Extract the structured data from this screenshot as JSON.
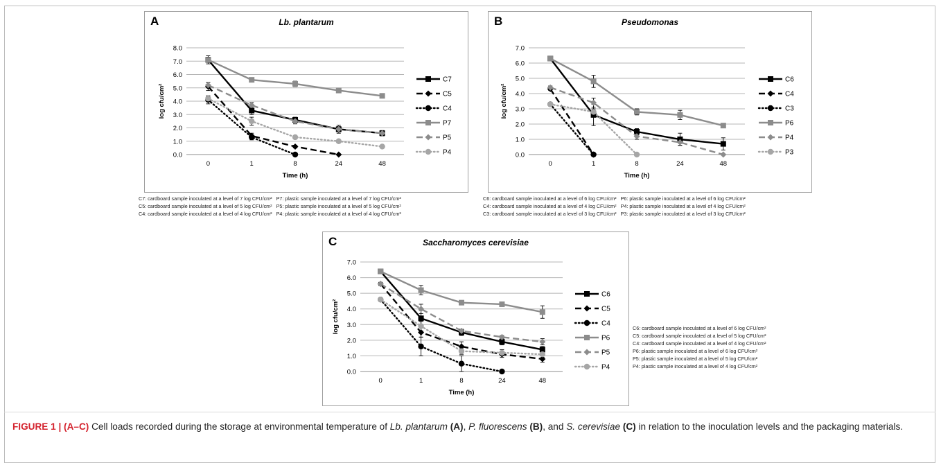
{
  "figure": {
    "caption_label": "FIGURE 1 | (A–C)",
    "caption_parts": [
      {
        "t": " Cell loads recorded during the storage at environmental temperature of ",
        "s": ""
      },
      {
        "t": "Lb. plantarum",
        "s": "i"
      },
      {
        "t": " ",
        "s": ""
      },
      {
        "t": "(A)",
        "s": "b"
      },
      {
        "t": ", ",
        "s": ""
      },
      {
        "t": "P. fluorescens",
        "s": "i"
      },
      {
        "t": " ",
        "s": ""
      },
      {
        "t": "(B)",
        "s": "b"
      },
      {
        "t": ", and ",
        "s": ""
      },
      {
        "t": "S. cerevisiae",
        "s": "i"
      },
      {
        "t": " ",
        "s": ""
      },
      {
        "t": "(C)",
        "s": "b"
      },
      {
        "t": " in relation to the inoculation levels and the packaging materials.",
        "s": ""
      }
    ]
  },
  "styles": {
    "C": {
      "color": "#000000",
      "dash": ""
    },
    "C_mid": {
      "color": "#000000",
      "dash": "9,5"
    },
    "C_low": {
      "color": "#000000",
      "dash": "1.5,3.5"
    },
    "P": {
      "color": "#8c8c8c",
      "dash": ""
    },
    "P_mid": {
      "color": "#8c8c8c",
      "dash": "9,5"
    },
    "P_low": {
      "color": "#a6a6a6",
      "dash": "1.5,3.5"
    }
  },
  "chart_data": [
    {
      "id": "A",
      "type": "line",
      "panel_letter": "A",
      "title": "Lb. plantarum",
      "xlabel": "Time (h)",
      "ylabel": "log cfu/cm²",
      "categories": [
        "0",
        "1",
        "8",
        "24",
        "48"
      ],
      "ylim": [
        0,
        8
      ],
      "yticks": [
        "0.0",
        "1.0",
        "2.0",
        "3.0",
        "4.0",
        "5.0",
        "6.0",
        "7.0",
        "8.0"
      ],
      "grid": true,
      "legend_position": "right",
      "series": [
        {
          "name": "C7",
          "style": "C",
          "marker": "square",
          "values": [
            7.1,
            3.3,
            2.6,
            1.9,
            1.6
          ],
          "err": [
            0.3,
            0.3,
            0.2,
            0.3,
            0.2
          ]
        },
        {
          "name": "C5",
          "style": "C_mid",
          "marker": "diamond",
          "values": [
            5.1,
            1.4,
            0.6,
            0.0,
            null
          ],
          "err": [
            0.3,
            0.2,
            0.1,
            0,
            0
          ]
        },
        {
          "name": "C4",
          "style": "C_low",
          "marker": "circle",
          "values": [
            4.1,
            1.3,
            0.0,
            null,
            null
          ],
          "err": [
            0.3,
            0.2,
            0,
            0,
            0
          ]
        },
        {
          "name": "P7",
          "style": "P",
          "marker": "square",
          "values": [
            7.1,
            5.6,
            5.3,
            4.8,
            4.4
          ],
          "err": [
            0.2,
            0.1,
            0.2,
            0.1,
            0.1
          ]
        },
        {
          "name": "P5",
          "style": "P_mid",
          "marker": "diamond",
          "values": [
            5.2,
            3.7,
            2.5,
            1.9,
            1.6
          ],
          "err": [
            0.2,
            0.2,
            0.2,
            0.2,
            0.2
          ]
        },
        {
          "name": "P4",
          "style": "P_low",
          "marker": "circle",
          "values": [
            4.2,
            2.5,
            1.3,
            1.0,
            0.6
          ],
          "err": [
            0.2,
            0.3,
            0.1,
            0.1,
            0.1
          ]
        }
      ],
      "caption_lines": [
        [
          "C7: cardboard sample inoculated at a level of 7 log CFU/cm²",
          "P7: plastic sample inoculated at a level of 7 log CFU/cm²"
        ],
        [
          "C5: cardboard sample inoculated at a level of 5 log CFU/cm²",
          "P5: plastic sample inoculated at a level of 5 log CFU/cm²"
        ],
        [
          "C4: cardboard sample inoculated at a level of 4 log CFU/cm²",
          "P4: plastic sample inoculated at a level of 4 log CFU/cm²"
        ]
      ]
    },
    {
      "id": "B",
      "type": "line",
      "panel_letter": "B",
      "title": "Pseudomonas",
      "xlabel": "Time (h)",
      "ylabel": "log cfu/cm²",
      "categories": [
        "0",
        "1",
        "8",
        "24",
        "48"
      ],
      "ylim": [
        0,
        7
      ],
      "yticks": [
        "0.0",
        "1.0",
        "2.0",
        "3.0",
        "4.0",
        "5.0",
        "6.0",
        "7.0"
      ],
      "grid": true,
      "legend_position": "right",
      "series": [
        {
          "name": "C6",
          "style": "C",
          "marker": "square",
          "values": [
            6.3,
            2.6,
            1.5,
            1.0,
            0.7
          ],
          "err": [
            0.1,
            0.7,
            0.2,
            0.4,
            0.4
          ]
        },
        {
          "name": "C4",
          "style": "C_mid",
          "marker": "diamond",
          "values": [
            4.3,
            0.0,
            null,
            null,
            null
          ],
          "err": [
            0.1,
            0,
            0,
            0,
            0
          ]
        },
        {
          "name": "C3",
          "style": "C_low",
          "marker": "circle",
          "values": [
            3.3,
            0.0,
            null,
            null,
            null
          ],
          "err": [
            0.1,
            0,
            0,
            0,
            0
          ]
        },
        {
          "name": "P6",
          "style": "P",
          "marker": "square",
          "values": [
            6.3,
            4.8,
            2.8,
            2.6,
            1.9
          ],
          "err": [
            0.1,
            0.4,
            0.2,
            0.3,
            0.1
          ]
        },
        {
          "name": "P4",
          "style": "P_mid",
          "marker": "diamond",
          "values": [
            4.4,
            3.4,
            1.2,
            0.8,
            0.0
          ],
          "err": [
            0.1,
            0.3,
            0.2,
            0.2,
            0
          ]
        },
        {
          "name": "P3",
          "style": "P_low",
          "marker": "circle",
          "values": [
            3.3,
            2.8,
            0.0,
            null,
            null
          ],
          "err": [
            0.1,
            0.2,
            0,
            0,
            0
          ]
        }
      ],
      "caption_lines": [
        [
          "C6: cardboard sample inoculated at a level of 6 log CFU/cm²",
          "P6: plastic sample inoculated at a level of 6 log CFU/cm²"
        ],
        [
          "C4: cardboard sample inoculated at a level of 4 log CFU/cm²",
          "P4: plastic sample inoculated at a level of 4 log CFU/cm²"
        ],
        [
          "C3: cardboard sample inoculated at a level of 3 log CFU/cm²",
          "P3: plastic sample inoculated at a level of 3 log CFU/cm²"
        ]
      ]
    },
    {
      "id": "C",
      "type": "line",
      "panel_letter": "C",
      "title": "Saccharomyces cerevisiae",
      "xlabel": "Time (h)",
      "ylabel": "log cfu/cm²",
      "categories": [
        "0",
        "1",
        "8",
        "24",
        "48"
      ],
      "ylim": [
        0,
        7
      ],
      "yticks": [
        "0.0",
        "1.0",
        "2.0",
        "3.0",
        "4.0",
        "5.0",
        "6.0",
        "7.0"
      ],
      "grid": true,
      "legend_position": "right",
      "series": [
        {
          "name": "C6",
          "style": "C",
          "marker": "square",
          "values": [
            6.4,
            3.4,
            2.5,
            1.9,
            1.4
          ],
          "err": [
            0.1,
            0.5,
            0.2,
            0.2,
            0.2
          ]
        },
        {
          "name": "C5",
          "style": "C_mid",
          "marker": "diamond",
          "values": [
            5.6,
            2.5,
            1.6,
            1.1,
            0.8
          ],
          "err": [
            0.1,
            0.3,
            0.3,
            0.2,
            0.2
          ]
        },
        {
          "name": "C4",
          "style": "C_low",
          "marker": "circle",
          "values": [
            4.6,
            1.6,
            0.5,
            0.0,
            null
          ],
          "err": [
            0.1,
            0.6,
            0.5,
            0,
            0
          ]
        },
        {
          "name": "P6",
          "style": "P",
          "marker": "square",
          "values": [
            6.4,
            5.2,
            4.4,
            4.3,
            3.8
          ],
          "err": [
            0.1,
            0.3,
            0.1,
            0.1,
            0.4
          ]
        },
        {
          "name": "P5",
          "style": "P_mid",
          "marker": "diamond",
          "values": [
            5.6,
            4.0,
            2.6,
            2.2,
            1.9
          ],
          "err": [
            0.1,
            0.3,
            0.1,
            0.1,
            0.2
          ]
        },
        {
          "name": "P4",
          "style": "P_low",
          "marker": "circle",
          "values": [
            4.6,
            2.9,
            1.3,
            1.2,
            1.1
          ],
          "err": [
            0.1,
            0.3,
            0.2,
            0.2,
            0.2
          ]
        }
      ],
      "caption_lines": [
        [
          "C6: cardboard sample inoculated at a level of 6 log CFU/cm²"
        ],
        [
          "C5: cardboard sample inoculated at a level of 5 log CFU/cm²"
        ],
        [
          "C4: cardboard sample inoculated at a level of 4 log CFU/cm²"
        ],
        [
          "P6: plastic sample inoculated at a level of 6 log CFU/cm²"
        ],
        [
          "P5: plastic sample inoculated at a level of 5 log CFU/cm²"
        ],
        [
          "P4: plastic sample inoculated at a level of 4 log CFU/cm²"
        ]
      ]
    }
  ]
}
